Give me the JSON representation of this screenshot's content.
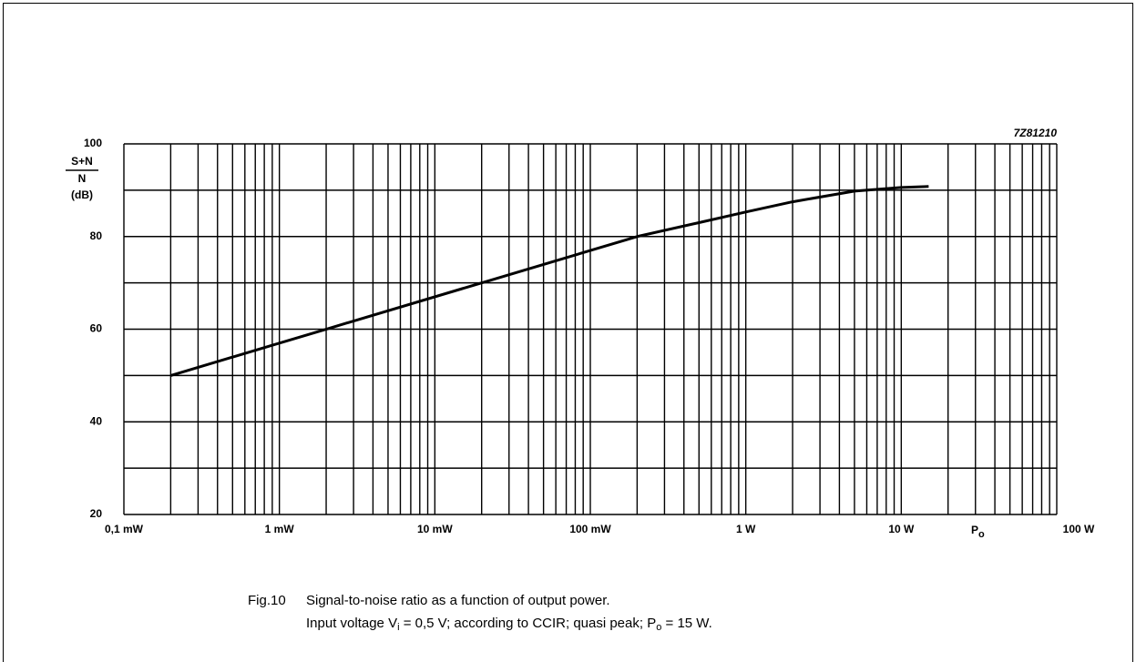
{
  "chart_data": {
    "type": "line",
    "code": "7Z81210",
    "ylabel": {
      "numerator": "S+N",
      "denominator": "N",
      "unit": "(dB)"
    },
    "xlabel": {
      "text": "P",
      "subscript": "o"
    },
    "caption": {
      "figure": "Fig.10",
      "line1": "Signal-to-noise ratio as a function of output power.",
      "line2": [
        "Input voltage V",
        "i",
        " = 0,5 V; according to CCIR; quasi peak; P",
        "o",
        " = 15 W."
      ]
    },
    "xscale": "log",
    "xlim": [
      0.0001,
      100
    ],
    "xticks": [
      {
        "value": 0.0001,
        "label": "0,1 mW"
      },
      {
        "value": 0.001,
        "label": "1 mW"
      },
      {
        "value": 0.01,
        "label": "10 mW"
      },
      {
        "value": 0.1,
        "label": "100 mW"
      },
      {
        "value": 1,
        "label": "1 W"
      },
      {
        "value": 10,
        "label": "10 W"
      },
      {
        "value": 100,
        "label": "100 W"
      }
    ],
    "xminor": [
      0.0002,
      0.0003,
      0.0004,
      0.0005,
      0.0006,
      0.0007,
      0.0008,
      0.0009,
      0.002,
      0.003,
      0.004,
      0.005,
      0.006,
      0.007,
      0.008,
      0.009,
      0.02,
      0.03,
      0.04,
      0.05,
      0.06,
      0.07,
      0.08,
      0.09,
      0.2,
      0.3,
      0.4,
      0.5,
      0.6,
      0.7,
      0.8,
      0.9,
      2,
      3,
      4,
      5,
      6,
      7,
      8,
      9,
      20,
      30,
      40,
      50,
      60,
      70,
      80,
      90
    ],
    "ylim": [
      20,
      100
    ],
    "yticks": [
      20,
      40,
      60,
      80,
      100
    ],
    "yminor": [
      30,
      50,
      70,
      90
    ],
    "grid": true,
    "color": "#000000",
    "series": [
      {
        "x": [
          0.0002,
          0.002,
          0.02,
          0.2,
          0.5,
          1,
          2,
          5,
          10,
          15
        ],
        "values": [
          50,
          60,
          70,
          80,
          83,
          85.3,
          87.5,
          89.8,
          90.6,
          90.8
        ]
      }
    ]
  }
}
